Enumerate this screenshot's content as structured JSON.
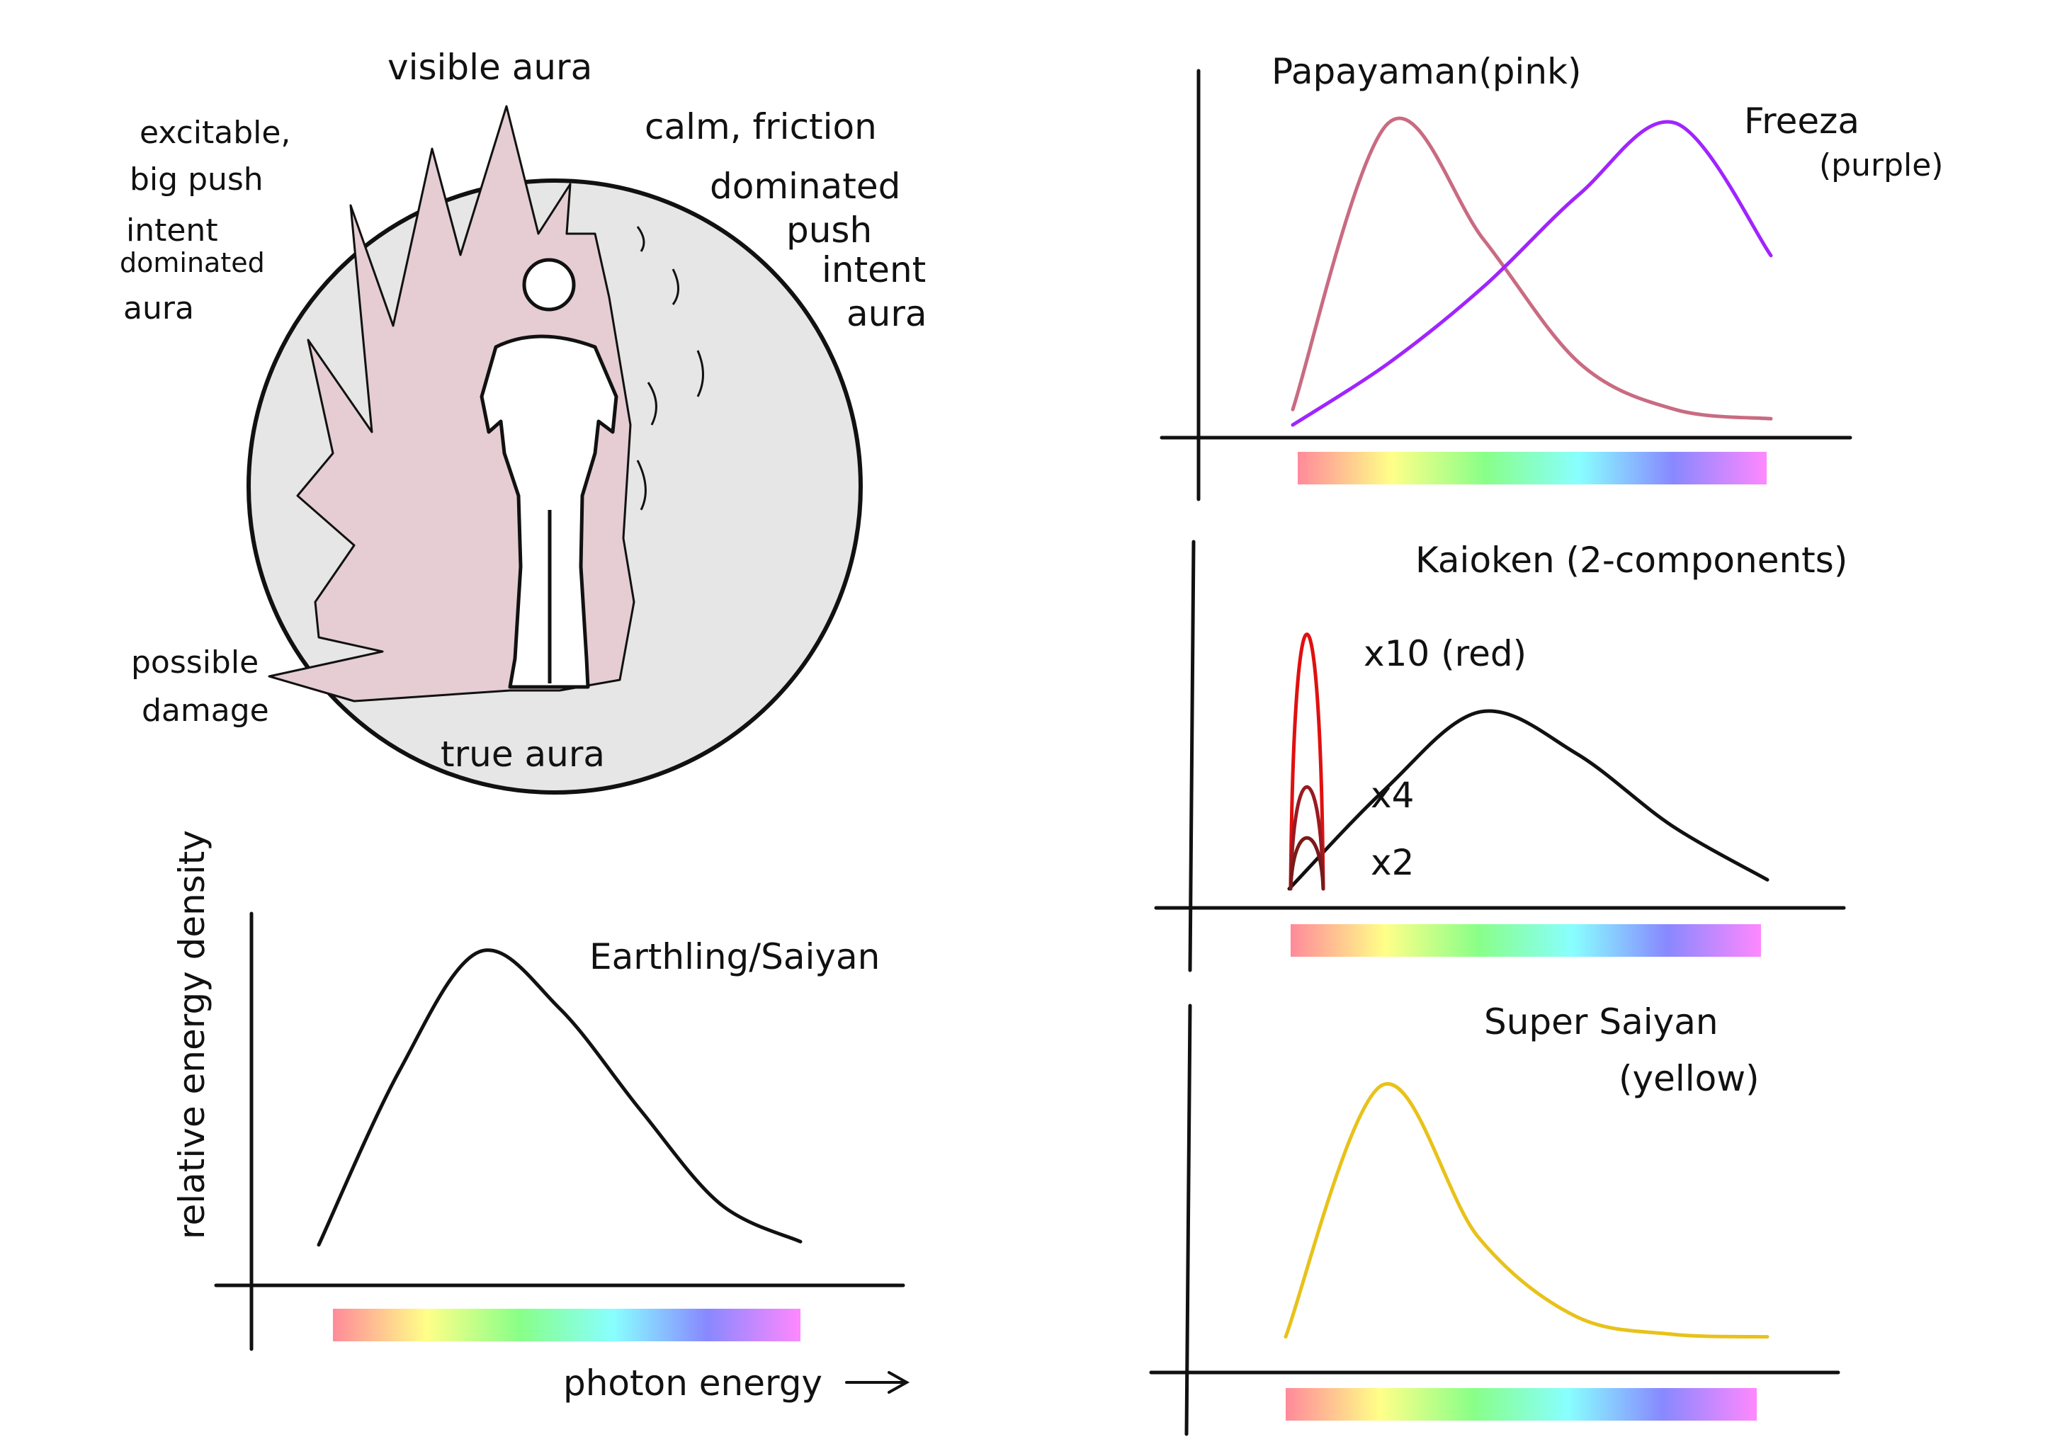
{
  "aura_illustration": {
    "labels": {
      "visible_aura": "visible aura",
      "excitable": [
        "excitable,",
        "big push",
        "intent",
        "dominated",
        "aura"
      ],
      "calm": [
        "calm, friction",
        "dominated",
        "push",
        "intent",
        "aura"
      ],
      "possible_damage": [
        "possible",
        "damage"
      ],
      "true_aura": "true aura"
    },
    "colors": {
      "aura_fill": "#e5cdd3",
      "sphere_fill": "#e6e6e6"
    }
  },
  "spectrum_colors": [
    "#ff8a9a",
    "#ffff88",
    "#88ff88",
    "#88ffff",
    "#8888ff",
    "#ff88ff"
  ],
  "chart_data": [
    {
      "type": "line",
      "title": "Earthling/Saiyan",
      "xlabel": "photon energy",
      "ylabel": "relative energy density",
      "series": [
        {
          "name": "",
          "color": "#111111",
          "values": [
            0.05,
            0.6,
            0.98,
            0.8,
            0.48,
            0.18,
            0.06
          ]
        }
      ]
    },
    {
      "type": "line",
      "title": "",
      "series": [
        {
          "name": "Papayaman(pink)",
          "color": "#c96b82",
          "values": [
            0.05,
            0.98,
            0.6,
            0.2,
            0.05,
            0.02
          ]
        },
        {
          "name": "Freeza",
          "name_note": "(purple)",
          "color": "#a024ff",
          "values": [
            0.0,
            0.2,
            0.45,
            0.75,
            0.98,
            0.55
          ]
        }
      ]
    },
    {
      "type": "line",
      "title": "Kaioken (2-components)",
      "series": [
        {
          "name": "",
          "color": "#111111",
          "values": [
            0.0,
            0.55,
            0.98,
            0.75,
            0.35,
            0.05
          ]
        },
        {
          "name": "x10 (red)",
          "color": "#e01010",
          "peak": 10
        },
        {
          "name": "x4",
          "color": "#9a1a22",
          "peak": 4
        },
        {
          "name": "x2",
          "color": "#7a1a1a",
          "peak": 2
        }
      ]
    },
    {
      "type": "line",
      "title": "Super Saiyan",
      "subtitle": "(yellow)",
      "series": [
        {
          "name": "",
          "color": "#e8c21a",
          "values": [
            0.02,
            0.98,
            0.4,
            0.1,
            0.03,
            0.02
          ]
        }
      ]
    }
  ]
}
